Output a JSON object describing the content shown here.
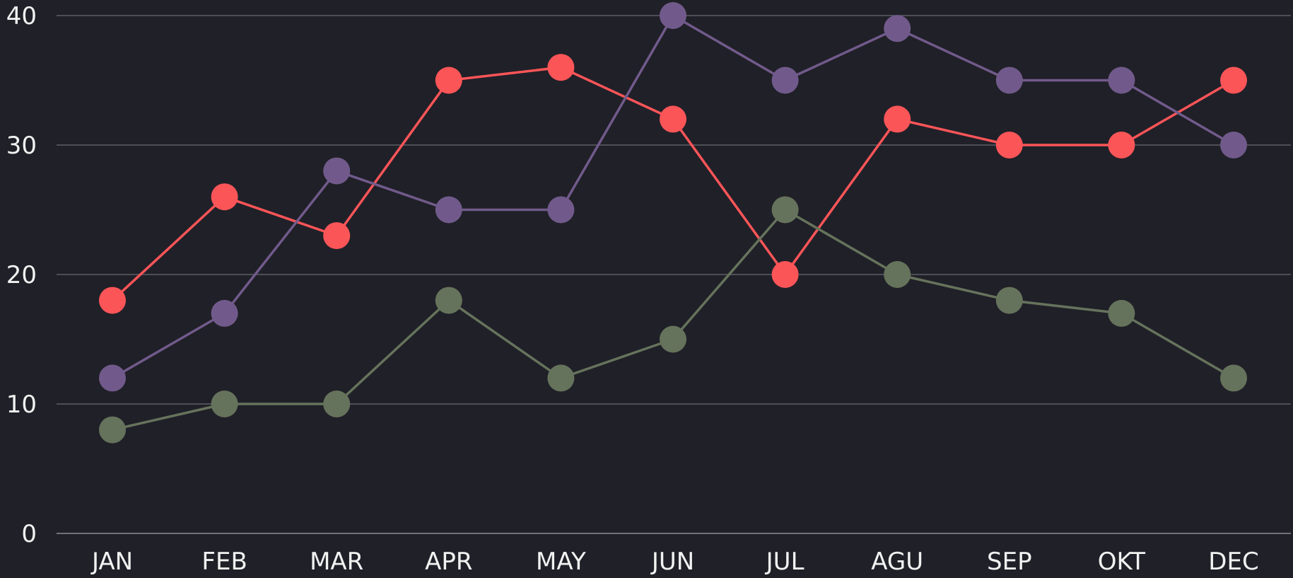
{
  "chart_data": {
    "type": "line",
    "title": "",
    "xlabel": "",
    "ylabel": "",
    "categories": [
      "JAN",
      "FEB",
      "MAR",
      "APR",
      "MAY",
      "JUN",
      "JUL",
      "AGU",
      "SEP",
      "OKT",
      "DEC"
    ],
    "ylim": [
      0,
      40
    ],
    "yticks": [
      0,
      10,
      20,
      30,
      40
    ],
    "grid": true,
    "legend": "none",
    "series": [
      {
        "color": "#fc5558",
        "values": [
          18,
          26,
          23,
          35,
          36,
          32,
          20,
          32,
          30,
          30,
          35
        ]
      },
      {
        "color": "#715a8b",
        "values": [
          12,
          17,
          28,
          25,
          25,
          40,
          35,
          39,
          35,
          35,
          30
        ]
      },
      {
        "color": "#66735c",
        "values": [
          8,
          10,
          10,
          18,
          12,
          15,
          25,
          20,
          18,
          17,
          12
        ]
      }
    ]
  },
  "colors": {
    "background": "#202028",
    "grid": "#5e5e66",
    "text": "#f2f2f2"
  }
}
